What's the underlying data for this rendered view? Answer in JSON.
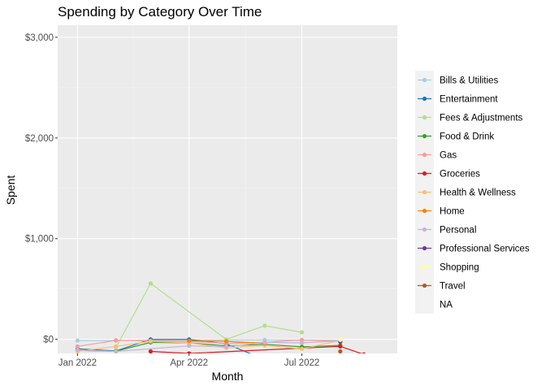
{
  "chart_data": {
    "type": "line",
    "title": "Spending by Category Over Time",
    "xlabel": "Month",
    "ylabel": "Spent",
    "x_ticks": [
      {
        "label": "Jan 2022",
        "date": "2022-01-01"
      },
      {
        "label": "Apr 2022",
        "date": "2022-04-01"
      },
      {
        "label": "Jul 2022",
        "date": "2022-07-01"
      }
    ],
    "y_ticks": [
      {
        "label": "$0",
        "value": 0
      },
      {
        "label": "$1,000",
        "value": 1000
      },
      {
        "label": "$2,000",
        "value": 2000
      },
      {
        "label": "$3,000",
        "value": 3000
      }
    ],
    "xlim": [
      "2021-12-16",
      "2022-09-16"
    ],
    "ylim": [
      -140,
      3120
    ],
    "background": "#ebebeb",
    "grid": true,
    "legend_position": "right",
    "series": [
      {
        "name": "Bills & Utilities",
        "color": "#a6cee3",
        "points": [
          [
            "2022-01-01",
            -12
          ],
          [
            "2022-02-01",
            -12
          ],
          [
            "2022-03-01",
            -8
          ],
          [
            "2022-04-01",
            -8
          ],
          [
            "2022-05-01",
            -5
          ],
          [
            "2022-06-01",
            -5
          ],
          [
            "2022-07-01",
            -8
          ],
          [
            "2022-08-01",
            -10
          ]
        ]
      },
      {
        "name": "Entertainment",
        "color": "#1f78b4",
        "points": [
          [
            "2022-01-01",
            -95
          ],
          [
            "2022-02-01",
            -115
          ],
          [
            "2022-03-01",
            0
          ],
          [
            "2022-04-01",
            0
          ],
          [
            "2022-05-01",
            -45
          ],
          [
            "2022-06-01",
            -200
          ]
        ]
      },
      {
        "name": "Fees & Adjustments",
        "color": "#b2df8a",
        "points": [
          [
            "2022-02-01",
            -80
          ],
          [
            "2022-03-01",
            555
          ],
          [
            "2022-05-01",
            0
          ],
          [
            "2022-06-01",
            135
          ],
          [
            "2022-07-01",
            70
          ]
        ]
      },
      {
        "name": "Food & Drink",
        "color": "#33a02c",
        "points": [
          [
            "2022-01-01",
            -110
          ],
          [
            "2022-02-01",
            -118
          ],
          [
            "2022-03-01",
            -30
          ],
          [
            "2022-04-01",
            -35
          ],
          [
            "2022-05-01",
            -65
          ],
          [
            "2022-06-01",
            -50
          ],
          [
            "2022-07-01",
            -75
          ],
          [
            "2022-08-01",
            -60
          ]
        ]
      },
      {
        "name": "Gas",
        "color": "#fb9a99",
        "points": [
          [
            "2022-01-01",
            -70
          ],
          [
            "2022-02-01",
            -10
          ],
          [
            "2022-03-01",
            -15
          ],
          [
            "2022-04-01",
            -20
          ],
          [
            "2022-05-01",
            -40
          ],
          [
            "2022-06-01",
            -30
          ],
          [
            "2022-07-01",
            -5
          ],
          [
            "2022-08-01",
            -20
          ]
        ]
      },
      {
        "name": "Groceries",
        "color": "#e31a1c",
        "points": [
          [
            "2022-03-01",
            -120
          ],
          [
            "2022-04-01",
            -140
          ],
          [
            "2022-08-01",
            -70
          ],
          [
            "2022-08-20",
            -150
          ]
        ]
      },
      {
        "name": "Health & Wellness",
        "color": "#fdbf6f",
        "points": [
          [
            "2022-01-01",
            -120
          ],
          [
            "2022-02-01",
            -70
          ],
          [
            "2022-03-01",
            -20
          ],
          [
            "2022-04-01",
            -35
          ],
          [
            "2022-05-01",
            -85
          ],
          [
            "2022-06-01",
            -60
          ],
          [
            "2022-07-01",
            -95
          ],
          [
            "2022-08-01",
            -10
          ]
        ]
      },
      {
        "name": "Home",
        "color": "#ff7f00",
        "points": [
          [
            "2022-04-01",
            -15
          ],
          [
            "2022-05-01",
            -20
          ],
          [
            "2022-06-01",
            -40
          ]
        ]
      },
      {
        "name": "Personal",
        "color": "#cab2d6",
        "points": [
          [
            "2022-01-01",
            -105
          ],
          [
            "2022-02-01",
            -120
          ],
          [
            "2022-04-01",
            -65
          ],
          [
            "2022-05-01",
            -75
          ],
          [
            "2022-06-01",
            -30
          ],
          [
            "2022-07-01",
            -35
          ],
          [
            "2022-08-01",
            -15
          ]
        ]
      },
      {
        "name": "Professional Services",
        "color": "#6a3d9a",
        "points": [
          [
            "2022-08-01",
            -25
          ]
        ]
      },
      {
        "name": "Shopping",
        "color": "#ffff99",
        "points": [
          [
            "2022-08-01",
            -5
          ]
        ]
      },
      {
        "name": "Travel",
        "color": "#b15928",
        "points": [
          [
            "2022-08-01",
            -120
          ]
        ]
      },
      {
        "name": "NA",
        "color": null,
        "points": []
      }
    ]
  }
}
